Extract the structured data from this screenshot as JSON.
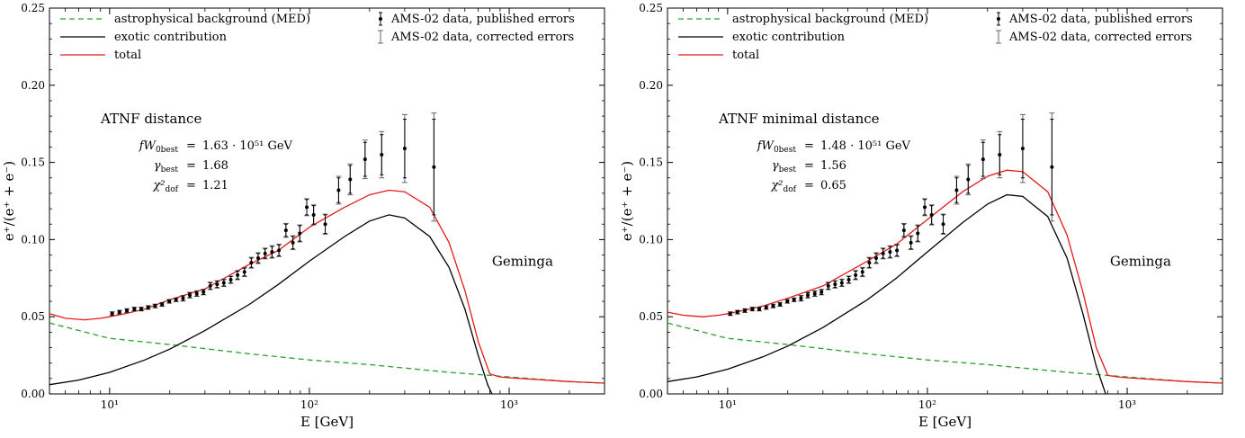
{
  "chart_data": [
    {
      "type": "line",
      "xlabel": "E [GeV]",
      "ylabel": "e⁺/(e⁺ + e⁻)",
      "xscale": "log",
      "xlim": [
        5,
        3000
      ],
      "ylim": [
        0,
        0.25
      ],
      "xticks": [
        {
          "value": 10,
          "label": "10¹"
        },
        {
          "value": 100,
          "label": "10²"
        },
        {
          "value": 1000,
          "label": "10³"
        }
      ],
      "yticks": [
        0,
        0.05,
        0.1,
        0.15,
        0.2,
        0.25
      ],
      "ytick_labels": [
        "0.00",
        "0.05",
        "0.10",
        "0.15",
        "0.20",
        "0.25"
      ],
      "grid": false,
      "legend_left": [
        {
          "label": "astrophysical background (MED)",
          "color": "#2ca02c",
          "style": "dashed"
        },
        {
          "label": "exotic contribution",
          "color": "#000000",
          "style": "solid"
        },
        {
          "label": "total",
          "color": "#e41a1c",
          "style": "solid"
        }
      ],
      "legend_right": [
        {
          "label": "AMS-02 data, published errors",
          "marker": "point-errorbar"
        },
        {
          "label": "AMS-02 data, corrected errors",
          "marker": "errorbar"
        }
      ],
      "annotation_title": "ATNF distance",
      "params": [
        {
          "name": "fW",
          "sub": "0best",
          "value": "1.63 · 10⁵¹ GeV"
        },
        {
          "name": "γ",
          "sub": "best",
          "value": "1.68"
        },
        {
          "name": "χ²",
          "sub": "dof",
          "value": "1.21"
        }
      ],
      "source_label": "Geminga",
      "series": [
        {
          "name": "astrophysical background (MED)",
          "color": "#2ca02c",
          "style": "dashed",
          "x": [
            5,
            10,
            20,
            50,
            100,
            200,
            500,
            800,
            1000,
            2000,
            3000
          ],
          "y": [
            0.046,
            0.036,
            0.032,
            0.026,
            0.022,
            0.019,
            0.014,
            0.012,
            0.011,
            0.008,
            0.007
          ]
        },
        {
          "name": "exotic contribution",
          "color": "#000000",
          "style": "solid",
          "x": [
            5,
            7,
            10,
            15,
            20,
            30,
            50,
            70,
            100,
            150,
            200,
            250,
            300,
            400,
            500,
            600,
            700,
            780,
            820
          ],
          "y": [
            0.006,
            0.009,
            0.014,
            0.022,
            0.029,
            0.041,
            0.058,
            0.071,
            0.086,
            0.102,
            0.112,
            0.116,
            0.114,
            0.102,
            0.082,
            0.055,
            0.025,
            0.006,
            0.0
          ]
        },
        {
          "name": "total",
          "color": "#e41a1c",
          "style": "solid",
          "x": [
            5,
            6,
            7.5,
            9,
            10,
            12,
            15,
            20,
            30,
            50,
            70,
            100,
            150,
            200,
            250,
            300,
            400,
            500,
            600,
            700,
            800,
            900,
            1000,
            2000,
            3000
          ],
          "y": [
            0.052,
            0.049,
            0.048,
            0.049,
            0.05,
            0.052,
            0.055,
            0.061,
            0.068,
            0.084,
            0.093,
            0.108,
            0.121,
            0.129,
            0.132,
            0.131,
            0.121,
            0.098,
            0.067,
            0.034,
            0.013,
            0.011,
            0.0105,
            0.008,
            0.007
          ]
        }
      ],
      "data_points": {
        "x": [
          10.3,
          11.2,
          12.2,
          13.3,
          14.4,
          15.6,
          16.9,
          18.3,
          19.9,
          21.5,
          23.3,
          25.2,
          27.3,
          29.5,
          31.9,
          34.5,
          37.3,
          40.4,
          43.7,
          47.3,
          51.2,
          55.4,
          60.0,
          65.0,
          70.4,
          76.3,
          82.7,
          89.5,
          97.0,
          105,
          120,
          140,
          160,
          190,
          230,
          300,
          420
        ],
        "y": [
          0.052,
          0.053,
          0.054,
          0.055,
          0.055,
          0.056,
          0.057,
          0.058,
          0.06,
          0.061,
          0.062,
          0.064,
          0.065,
          0.066,
          0.07,
          0.071,
          0.072,
          0.074,
          0.077,
          0.079,
          0.085,
          0.088,
          0.091,
          0.092,
          0.093,
          0.106,
          0.098,
          0.104,
          0.121,
          0.116,
          0.11,
          0.132,
          0.139,
          0.152,
          0.155,
          0.159,
          0.147
        ],
        "err_published": [
          0.001,
          0.001,
          0.001,
          0.001,
          0.001,
          0.001,
          0.001,
          0.001,
          0.001,
          0.001,
          0.0015,
          0.0015,
          0.0015,
          0.0015,
          0.002,
          0.002,
          0.002,
          0.002,
          0.0025,
          0.0025,
          0.003,
          0.003,
          0.003,
          0.0035,
          0.0035,
          0.004,
          0.004,
          0.005,
          0.005,
          0.006,
          0.006,
          0.008,
          0.009,
          0.011,
          0.013,
          0.019,
          0.031
        ],
        "err_corrected": [
          0.0012,
          0.0012,
          0.0012,
          0.0012,
          0.0012,
          0.0012,
          0.0012,
          0.0012,
          0.0012,
          0.0012,
          0.0018,
          0.0018,
          0.0018,
          0.0018,
          0.0024,
          0.0024,
          0.0024,
          0.0024,
          0.003,
          0.003,
          0.0035,
          0.0035,
          0.0035,
          0.004,
          0.004,
          0.0045,
          0.0045,
          0.0055,
          0.0055,
          0.0065,
          0.0065,
          0.009,
          0.01,
          0.0125,
          0.015,
          0.022,
          0.035
        ]
      }
    },
    {
      "type": "line",
      "xlabel": "E [GeV]",
      "ylabel": "e⁺/(e⁺ + e⁻)",
      "xscale": "log",
      "xlim": [
        5,
        3000
      ],
      "ylim": [
        0,
        0.25
      ],
      "xticks": [
        {
          "value": 10,
          "label": "10¹"
        },
        {
          "value": 100,
          "label": "10²"
        },
        {
          "value": 1000,
          "label": "10³"
        }
      ],
      "yticks": [
        0,
        0.05,
        0.1,
        0.15,
        0.2,
        0.25
      ],
      "ytick_labels": [
        "0.00",
        "0.05",
        "0.10",
        "0.15",
        "0.20",
        "0.25"
      ],
      "grid": false,
      "legend_left": [
        {
          "label": "astrophysical background (MED)",
          "color": "#2ca02c",
          "style": "dashed"
        },
        {
          "label": "exotic contribution",
          "color": "#000000",
          "style": "solid"
        },
        {
          "label": "total",
          "color": "#e41a1c",
          "style": "solid"
        }
      ],
      "legend_right": [
        {
          "label": "AMS-02 data, published errors",
          "marker": "point-errorbar"
        },
        {
          "label": "AMS-02 data, corrected errors",
          "marker": "errorbar"
        }
      ],
      "annotation_title": "ATNF minimal distance",
      "params": [
        {
          "name": "fW",
          "sub": "0best",
          "value": "1.48 · 10⁵¹ GeV"
        },
        {
          "name": "γ",
          "sub": "best",
          "value": "1.56"
        },
        {
          "name": "χ²",
          "sub": "dof",
          "value": "0.65"
        }
      ],
      "source_label": "Geminga",
      "series": [
        {
          "name": "astrophysical background (MED)",
          "color": "#2ca02c",
          "style": "dashed",
          "x": [
            5,
            10,
            20,
            50,
            100,
            200,
            500,
            800,
            1000,
            2000,
            3000
          ],
          "y": [
            0.046,
            0.036,
            0.032,
            0.026,
            0.022,
            0.019,
            0.014,
            0.012,
            0.011,
            0.008,
            0.007
          ]
        },
        {
          "name": "exotic contribution",
          "color": "#000000",
          "style": "solid",
          "x": [
            5,
            7,
            10,
            15,
            20,
            30,
            50,
            70,
            100,
            150,
            200,
            250,
            300,
            400,
            500,
            600,
            700,
            780
          ],
          "y": [
            0.008,
            0.011,
            0.016,
            0.024,
            0.031,
            0.043,
            0.061,
            0.075,
            0.092,
            0.111,
            0.123,
            0.129,
            0.128,
            0.115,
            0.088,
            0.052,
            0.018,
            0.0
          ]
        },
        {
          "name": "total",
          "color": "#e41a1c",
          "style": "solid",
          "x": [
            5,
            6,
            7.5,
            9,
            10,
            12,
            15,
            20,
            30,
            50,
            70,
            100,
            150,
            200,
            250,
            300,
            400,
            500,
            600,
            700,
            800,
            900,
            1000,
            2000,
            3000
          ],
          "y": [
            0.053,
            0.051,
            0.05,
            0.051,
            0.052,
            0.054,
            0.057,
            0.062,
            0.07,
            0.086,
            0.097,
            0.113,
            0.131,
            0.141,
            0.145,
            0.144,
            0.131,
            0.103,
            0.066,
            0.03,
            0.012,
            0.011,
            0.0105,
            0.008,
            0.007
          ]
        }
      ],
      "data_points": {
        "x": [
          10.3,
          11.2,
          12.2,
          13.3,
          14.4,
          15.6,
          16.9,
          18.3,
          19.9,
          21.5,
          23.3,
          25.2,
          27.3,
          29.5,
          31.9,
          34.5,
          37.3,
          40.4,
          43.7,
          47.3,
          51.2,
          55.4,
          60.0,
          65.0,
          70.4,
          76.3,
          82.7,
          89.5,
          97.0,
          105,
          120,
          140,
          160,
          190,
          230,
          300,
          420
        ],
        "y": [
          0.052,
          0.053,
          0.054,
          0.055,
          0.055,
          0.056,
          0.057,
          0.058,
          0.06,
          0.061,
          0.062,
          0.064,
          0.065,
          0.066,
          0.07,
          0.071,
          0.072,
          0.074,
          0.077,
          0.079,
          0.085,
          0.088,
          0.091,
          0.092,
          0.093,
          0.106,
          0.098,
          0.104,
          0.121,
          0.116,
          0.11,
          0.132,
          0.139,
          0.152,
          0.155,
          0.159,
          0.147
        ],
        "err_published": [
          0.001,
          0.001,
          0.001,
          0.001,
          0.001,
          0.001,
          0.001,
          0.001,
          0.001,
          0.001,
          0.0015,
          0.0015,
          0.0015,
          0.0015,
          0.002,
          0.002,
          0.002,
          0.002,
          0.0025,
          0.0025,
          0.003,
          0.003,
          0.003,
          0.0035,
          0.0035,
          0.004,
          0.004,
          0.005,
          0.005,
          0.006,
          0.006,
          0.008,
          0.009,
          0.011,
          0.013,
          0.019,
          0.031
        ],
        "err_corrected": [
          0.0012,
          0.0012,
          0.0012,
          0.0012,
          0.0012,
          0.0012,
          0.0012,
          0.0012,
          0.0012,
          0.0012,
          0.0018,
          0.0018,
          0.0018,
          0.0018,
          0.0024,
          0.0024,
          0.0024,
          0.0024,
          0.003,
          0.003,
          0.0035,
          0.0035,
          0.0035,
          0.004,
          0.004,
          0.0045,
          0.0045,
          0.0055,
          0.0055,
          0.0065,
          0.0065,
          0.009,
          0.01,
          0.0125,
          0.015,
          0.022,
          0.035
        ]
      }
    }
  ]
}
